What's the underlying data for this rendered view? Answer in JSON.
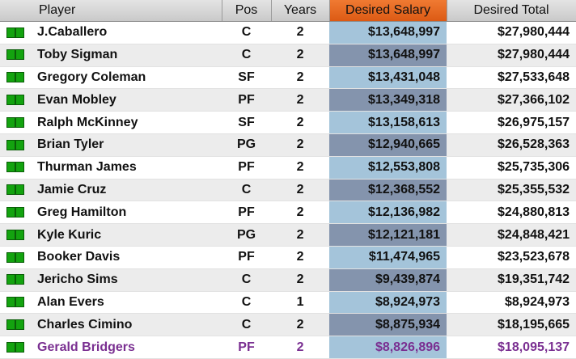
{
  "table": {
    "headers": {
      "player": "Player",
      "pos": "Pos",
      "years": "Years",
      "desired_salary": "Desired Salary",
      "desired_total": "Desired Total"
    },
    "colors": {
      "desired_header": "#e86a23",
      "desired_col_light": "#a4c4da",
      "desired_col_dark": "#8494ad",
      "selected_text": "#7a2f91",
      "icon_green": "#13a30f"
    },
    "row_icon": "green-box-icon",
    "rows": [
      {
        "name": "J.Caballero",
        "pos": "C",
        "years": "2",
        "salary": "$13,648,997",
        "total": "$27,980,444"
      },
      {
        "name": "Toby Sigman",
        "pos": "C",
        "years": "2",
        "salary": "$13,648,997",
        "total": "$27,980,444"
      },
      {
        "name": "Gregory Coleman",
        "pos": "SF",
        "years": "2",
        "salary": "$13,431,048",
        "total": "$27,533,648"
      },
      {
        "name": "Evan Mobley",
        "pos": "PF",
        "years": "2",
        "salary": "$13,349,318",
        "total": "$27,366,102"
      },
      {
        "name": "Ralph McKinney",
        "pos": "SF",
        "years": "2",
        "salary": "$13,158,613",
        "total": "$26,975,157"
      },
      {
        "name": "Brian Tyler",
        "pos": "PG",
        "years": "2",
        "salary": "$12,940,665",
        "total": "$26,528,363"
      },
      {
        "name": "Thurman James",
        "pos": "PF",
        "years": "2",
        "salary": "$12,553,808",
        "total": "$25,735,306"
      },
      {
        "name": "Jamie Cruz",
        "pos": "C",
        "years": "2",
        "salary": "$12,368,552",
        "total": "$25,355,532"
      },
      {
        "name": "Greg Hamilton",
        "pos": "PF",
        "years": "2",
        "salary": "$12,136,982",
        "total": "$24,880,813"
      },
      {
        "name": "Kyle Kuric",
        "pos": "PG",
        "years": "2",
        "salary": "$12,121,181",
        "total": "$24,848,421"
      },
      {
        "name": "Booker Davis",
        "pos": "PF",
        "years": "2",
        "salary": "$11,474,965",
        "total": "$23,523,678"
      },
      {
        "name": "Jericho Sims",
        "pos": "C",
        "years": "2",
        "salary": "$9,439,874",
        "total": "$19,351,742"
      },
      {
        "name": "Alan Evers",
        "pos": "C",
        "years": "1",
        "salary": "$8,924,973",
        "total": "$8,924,973"
      },
      {
        "name": "Charles Cimino",
        "pos": "C",
        "years": "2",
        "salary": "$8,875,934",
        "total": "$18,195,665"
      },
      {
        "name": "Gerald Bridgers",
        "pos": "PF",
        "years": "2",
        "salary": "$8,826,896",
        "total": "$18,095,137",
        "selected": true
      }
    ]
  }
}
